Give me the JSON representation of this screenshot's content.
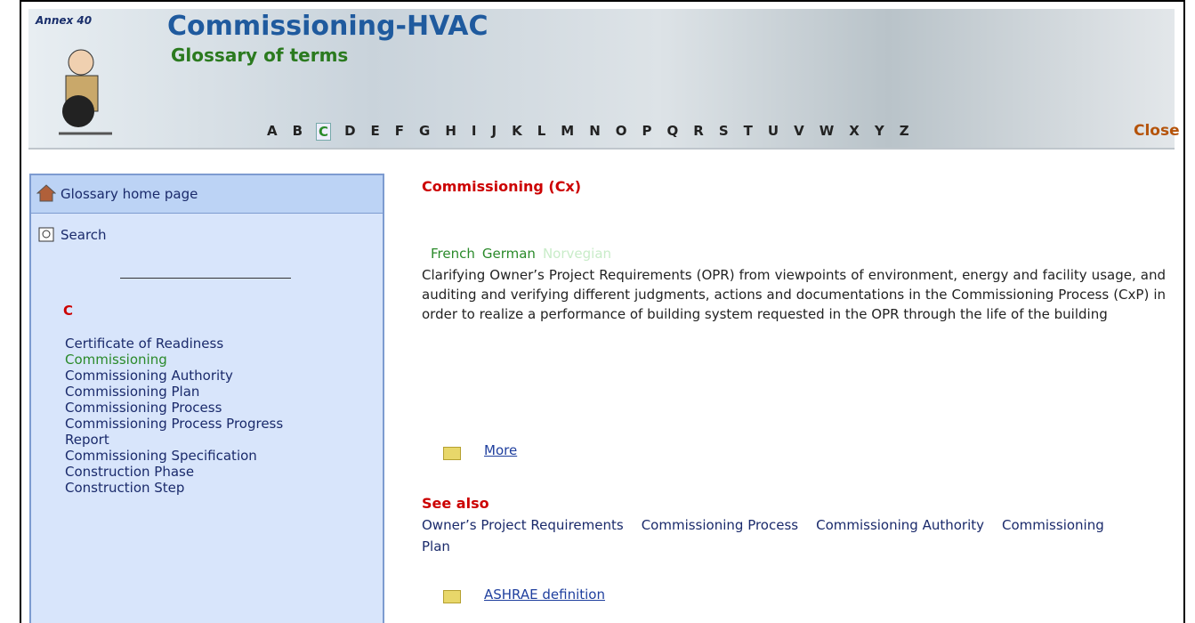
{
  "header": {
    "annex": "Annex 40",
    "title": "Commissioning-HVAC",
    "subtitle": "Glossary of terms",
    "letters": [
      "A",
      "B",
      "C",
      "D",
      "E",
      "F",
      "G",
      "H",
      "I",
      "J",
      "K",
      "L",
      "M",
      "N",
      "O",
      "P",
      "Q",
      "R",
      "S",
      "T",
      "U",
      "V",
      "W",
      "X",
      "Y",
      "Z"
    ],
    "active_letter_index": 2,
    "close": "Close"
  },
  "sidebar": {
    "home": "Glossary home page",
    "search": "Search",
    "letter": "C",
    "terms": [
      "Certificate of Readiness",
      "Commissioning",
      "Commissioning Authority",
      "Commissioning Plan",
      "Commissioning Process",
      "Commissioning Process Progress Report",
      "Commissioning Specification",
      "Construction Phase",
      "Construction Step"
    ],
    "active_term_index": 1
  },
  "content": {
    "term": "Commissioning (Cx)",
    "languages": [
      "French",
      "German",
      "Norvegian"
    ],
    "definition": "Clarifying Owner’s Project Requirements (OPR) from viewpoints of environment, energy and facility usage, and auditing and verifying different judgments, actions and documentations in the Commissioning Process (CxP) in order to realize a performance of building system requested in the OPR through the life of the building",
    "more": "More",
    "see_also_title": "See also",
    "see_also": [
      "Owner’s Project Requirements",
      "Commissioning Process",
      "Commissioning Authority",
      "Commissioning Plan"
    ],
    "ashrae": "ASHRAE definition"
  }
}
